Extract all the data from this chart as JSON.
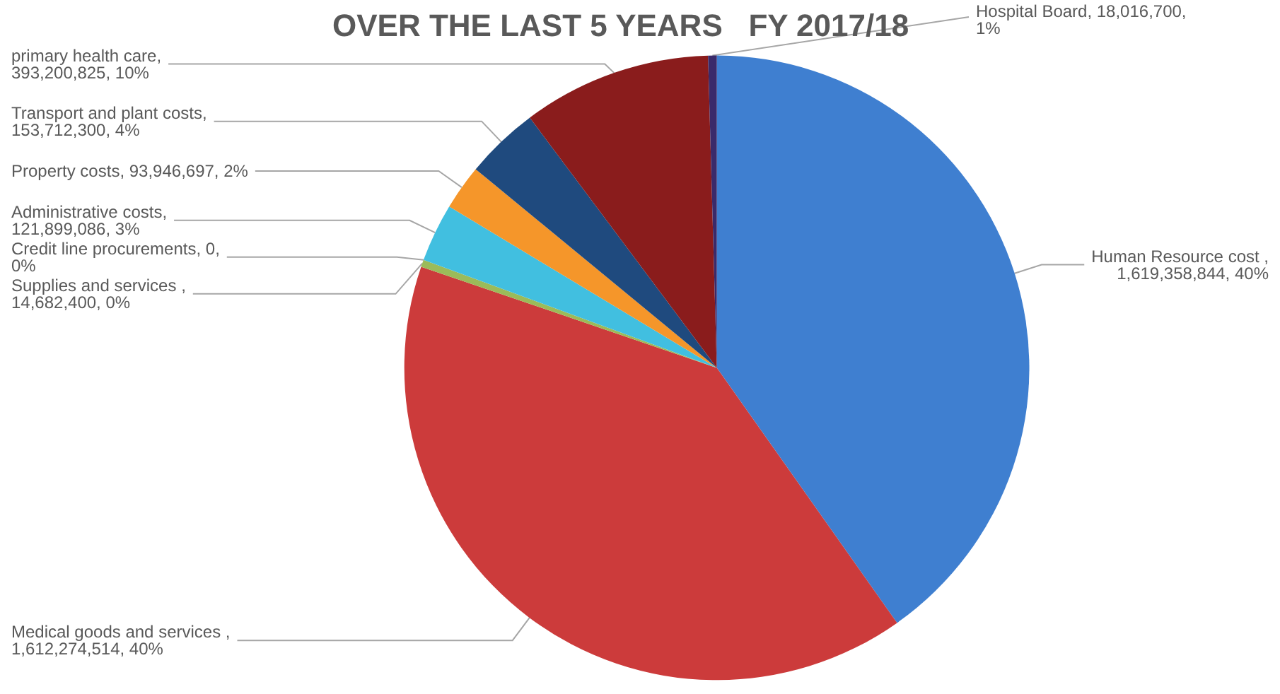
{
  "chart_data": {
    "type": "pie",
    "title": "OVER THE LAST 5 YEARS   FY 2017/18",
    "categories": [
      "Human Resource cost ",
      "Medical goods and services ",
      "Supplies and services ",
      "Credit line procurements",
      "Administrative costs",
      "Property costs",
      "Transport and plant costs",
      "primary health care",
      "Hospital Board"
    ],
    "values": [
      1619358844,
      1612274514,
      14682400,
      0,
      121899086,
      93946697,
      153712300,
      393200825,
      18016700
    ],
    "value_labels": [
      ",\n1,619,358,844, 40%",
      ",\n1,612,274,514, 40%",
      ",\n14,682,400, 0%",
      ", 0,\n0%",
      ",\n121,899,086, 3%",
      ", 93,946,697, 2%",
      ",\n153,712,300, 4%",
      ",\n393,200,825, 10%",
      ", 18,016,700,\n1%"
    ],
    "colors": [
      "#3f7fd0",
      "#cc3b3b",
      "#9bbb59",
      "#b8d96a",
      "#41bfe0",
      "#f5962a",
      "#1f4a7e",
      "#8a1c1c",
      "#3a2a6a"
    ],
    "legend": false
  }
}
